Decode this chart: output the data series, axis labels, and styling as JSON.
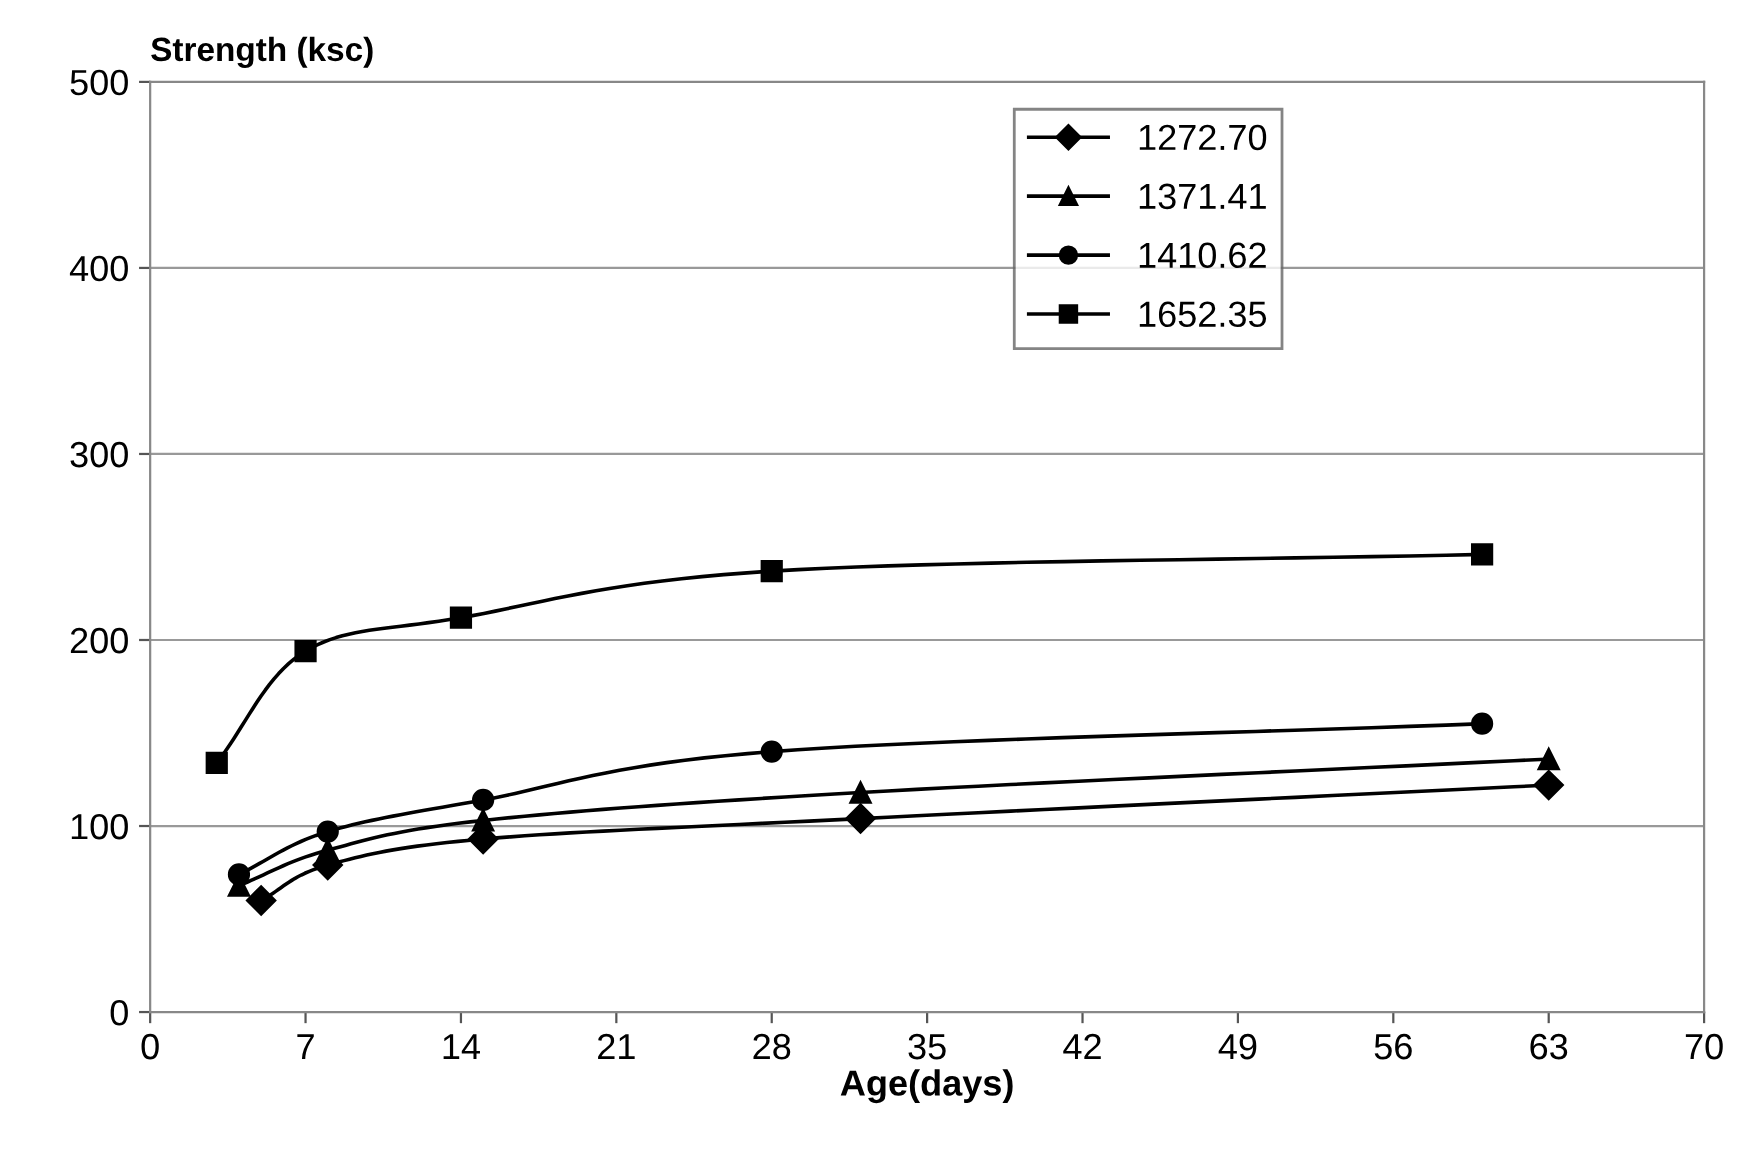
{
  "chart_data": {
    "type": "line",
    "ylabel": "Strength (ksc)",
    "xlabel": "Age(days)",
    "xlim": [
      0,
      70
    ],
    "xticks": [
      0,
      7,
      14,
      21,
      28,
      35,
      42,
      49,
      56,
      63,
      70
    ],
    "ylim": [
      0,
      500
    ],
    "yticks": [
      0,
      100,
      200,
      300,
      400,
      500
    ],
    "grid": "y",
    "legend": "top right",
    "series": [
      {
        "name": "1272.70",
        "color": "#000000",
        "marker": "diamond",
        "x": [
          5,
          8,
          15,
          32,
          63
        ],
        "values": [
          60,
          79,
          93,
          104,
          122
        ]
      },
      {
        "name": "1371.41",
        "color": "#000000",
        "marker": "triangle",
        "x": [
          4,
          8,
          15,
          32,
          63
        ],
        "values": [
          68,
          87,
          103,
          118,
          136
        ]
      },
      {
        "name": "1410.62",
        "color": "#000000",
        "marker": "circle",
        "x": [
          4,
          8,
          15,
          28,
          60
        ],
        "values": [
          74,
          97,
          114,
          140,
          155
        ]
      },
      {
        "name": "1652.35",
        "color": "#000000",
        "marker": "square",
        "x": [
          3,
          7,
          14,
          28,
          60
        ],
        "values": [
          134,
          194,
          212,
          237,
          246
        ]
      }
    ]
  }
}
